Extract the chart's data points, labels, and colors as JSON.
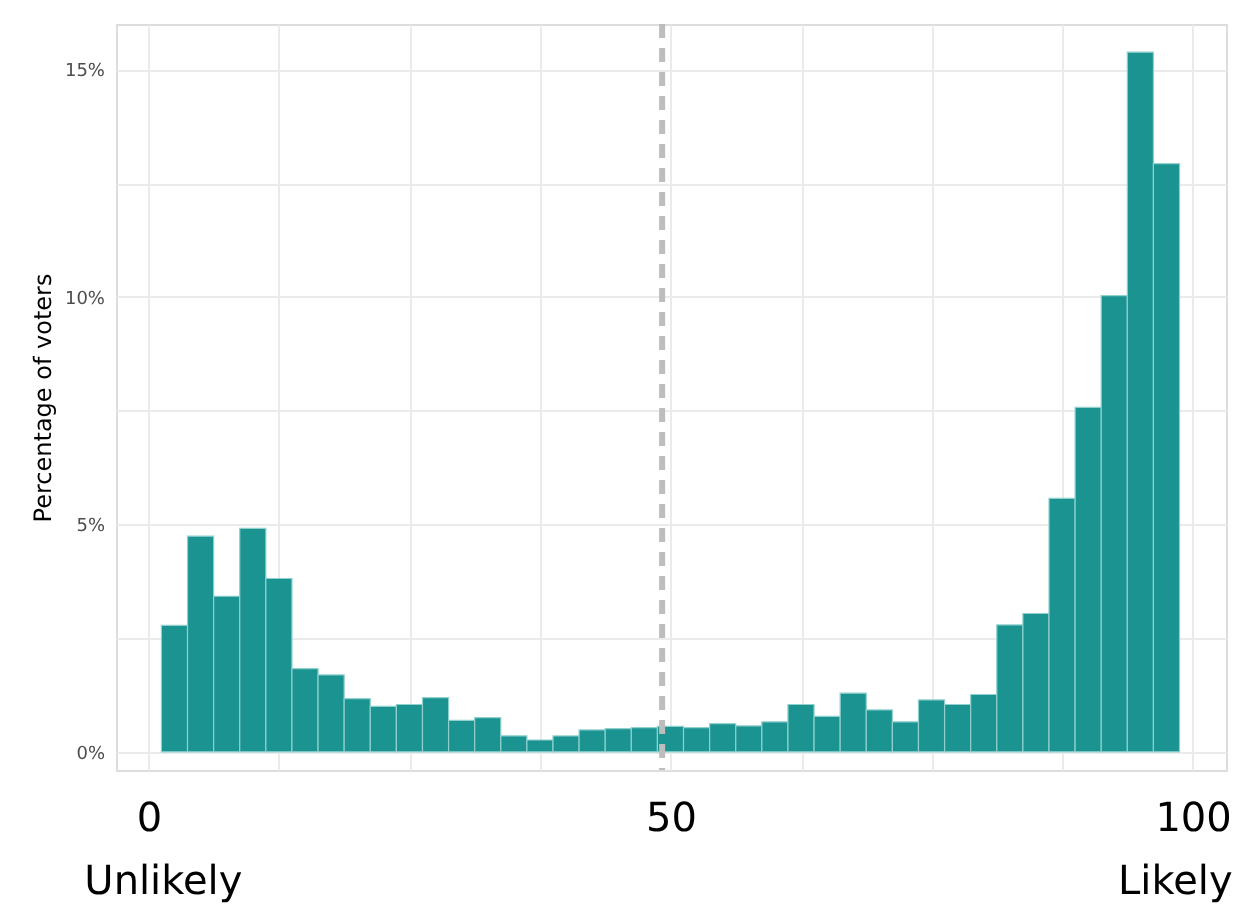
{
  "chart_data": {
    "type": "histogram",
    "ylabel": "Percentage of voters",
    "bins": [
      1.25,
      3.75,
      6.25,
      8.75,
      11.25,
      13.75,
      16.25,
      18.75,
      21.25,
      23.75,
      26.25,
      28.75,
      31.25,
      33.75,
      36.25,
      38.75,
      41.25,
      43.75,
      46.25,
      48.75,
      51.25,
      53.75,
      56.25,
      58.75,
      61.25,
      63.75,
      66.25,
      68.75,
      71.25,
      73.75,
      76.25,
      78.75,
      81.25,
      83.75,
      86.25,
      88.75,
      91.25,
      93.75,
      96.25,
      98.75
    ],
    "values": [
      2.78,
      4.74,
      3.42,
      4.91,
      3.81,
      1.83,
      1.69,
      1.17,
      1.0,
      1.04,
      1.19,
      0.69,
      0.75,
      0.35,
      0.26,
      0.35,
      0.48,
      0.51,
      0.53,
      0.56,
      0.53,
      0.62,
      0.57,
      0.66,
      1.04,
      0.78,
      1.29,
      0.92,
      0.66,
      1.14,
      1.04,
      1.26,
      2.79,
      3.04,
      5.57,
      7.57,
      10.03,
      15.38,
      12.93
    ],
    "color": "#1a9391",
    "xlim": [
      -3.1,
      103.2
    ],
    "xticks": [
      0,
      {
        "value": 12.5,
        "label": null
      },
      {
        "value": 25,
        "label": null
      },
      {
        "value": 37.5,
        "label": null
      },
      50,
      {
        "value": 62.5,
        "label": null
      },
      {
        "value": 75,
        "label": null
      },
      {
        "value": 87.5,
        "label": null
      },
      100
    ],
    "ylim": [
      -0.4,
      16
    ],
    "yticks": [
      {
        "value": 0,
        "label": "0%"
      },
      {
        "value": 2.5,
        "label": null
      },
      {
        "value": 5,
        "label": "5%"
      },
      {
        "value": 7.5,
        "label": null
      },
      {
        "value": 10,
        "label": "10%"
      },
      {
        "value": 12.5,
        "label": null
      },
      {
        "value": 15,
        "label": "15%"
      }
    ],
    "ref_lines": [
      {
        "axis": "x",
        "value": 49.2,
        "color": "#bdbdbd",
        "line_style": "dashed"
      }
    ],
    "annotations": [
      "Unlikely",
      "Likely"
    ],
    "grid": true
  }
}
